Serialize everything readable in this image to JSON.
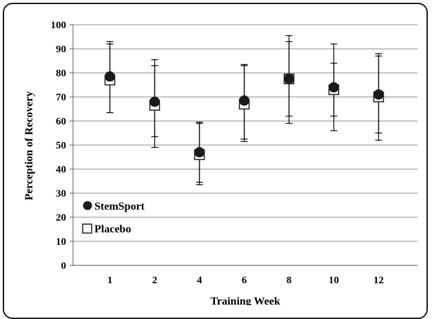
{
  "chart_data": {
    "type": "scatter",
    "title": "",
    "xlabel": "Training Week",
    "ylabel": "Perception of Recovery",
    "categories": [
      "1",
      "2",
      "4",
      "6",
      "8",
      "10",
      "12"
    ],
    "ylim": [
      0,
      100
    ],
    "yticks": [
      0,
      10,
      20,
      30,
      40,
      50,
      60,
      70,
      80,
      90,
      100
    ],
    "grid": "horizontal",
    "legend": "bottom-left",
    "series": [
      {
        "name": "StemSport",
        "marker": "filled-circle",
        "color": "#1a1a1a",
        "values": [
          78.5,
          68,
          47,
          68.5,
          77.5,
          74,
          71
        ],
        "err_upper": [
          92,
          83,
          59,
          83,
          93,
          84,
          87
        ],
        "err_lower": [
          63.5,
          53.5,
          34.5,
          52.5,
          62,
          62,
          55
        ]
      },
      {
        "name": "Placebo",
        "marker": "open-square",
        "color": "#1a1a1a",
        "values": [
          77,
          66.5,
          46,
          67,
          77.5,
          73,
          70
        ],
        "err_upper": [
          93,
          85.5,
          59.5,
          83.5,
          95.5,
          92,
          88
        ],
        "err_lower": [
          63.5,
          49,
          33.5,
          51.5,
          59,
          56,
          52
        ]
      }
    ]
  }
}
